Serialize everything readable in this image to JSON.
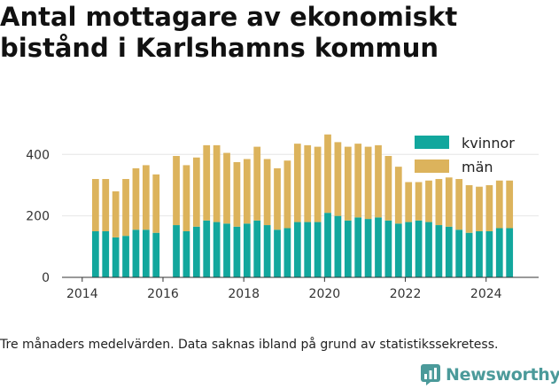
{
  "title": "Antal mottagare av ekonomiskt bistånd i Karlshamns kommun",
  "caption": "Tre månaders medelvärden. Data saknas ibland på grund av statistikssekretess.",
  "brand": {
    "name": "Newsworthy",
    "logo_icon": "newsworthy-chart-icon",
    "color": "#4b9a9a"
  },
  "chart_data": {
    "type": "bar",
    "stacked": true,
    "x_unit": "year",
    "xlim": [
      2013.5,
      2025.3
    ],
    "ylim": [
      0,
      470
    ],
    "x_ticks": [
      2014,
      2016,
      2018,
      2020,
      2022,
      2024
    ],
    "y_ticks": [
      0,
      200,
      400
    ],
    "grid": true,
    "legend_position": "top-right",
    "x": [
      2014.33,
      2014.58,
      2014.83,
      2015.08,
      2015.33,
      2015.58,
      2015.83,
      2016.33,
      2016.58,
      2016.83,
      2017.08,
      2017.33,
      2017.58,
      2017.83,
      2018.08,
      2018.33,
      2018.58,
      2018.83,
      2019.08,
      2019.33,
      2019.58,
      2019.83,
      2020.08,
      2020.33,
      2020.58,
      2020.83,
      2021.08,
      2021.33,
      2021.58,
      2021.83,
      2022.08,
      2022.33,
      2022.58,
      2022.83,
      2023.08,
      2023.33,
      2023.58,
      2023.83,
      2024.08,
      2024.33,
      2024.58
    ],
    "series": [
      {
        "name": "kvinnor",
        "color": "#12a79d",
        "values": [
          150,
          150,
          130,
          135,
          155,
          155,
          145,
          170,
          150,
          165,
          185,
          180,
          175,
          165,
          175,
          185,
          170,
          155,
          160,
          180,
          180,
          180,
          210,
          200,
          185,
          195,
          190,
          195,
          185,
          175,
          180,
          185,
          180,
          170,
          165,
          155,
          145,
          150,
          150,
          160,
          160
        ]
      },
      {
        "name": "män",
        "color": "#dcb35c",
        "values": [
          170,
          170,
          150,
          185,
          200,
          210,
          190,
          225,
          215,
          225,
          245,
          250,
          230,
          210,
          210,
          240,
          215,
          200,
          220,
          255,
          250,
          245,
          255,
          240,
          240,
          240,
          235,
          235,
          210,
          185,
          130,
          125,
          135,
          150,
          160,
          165,
          155,
          145,
          150,
          155,
          155
        ]
      }
    ]
  }
}
